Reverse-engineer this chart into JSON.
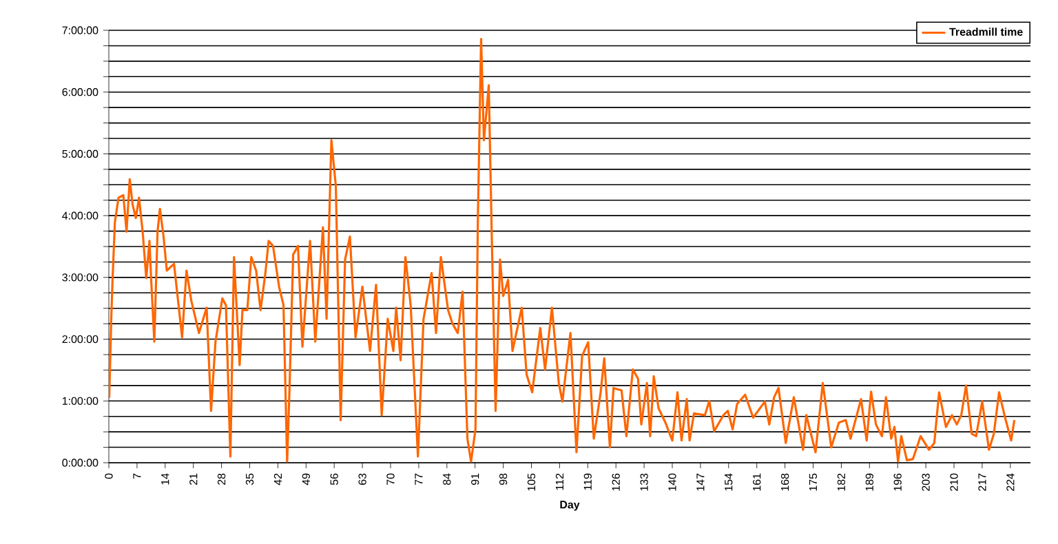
{
  "chart_data": {
    "type": "line",
    "xlabel": "Day",
    "legend": "top right",
    "grid": "y",
    "marker": "none",
    "line_style": "solid",
    "xlim": [
      0,
      229
    ],
    "xticks": [
      0,
      7,
      14,
      21,
      28,
      35,
      42,
      49,
      56,
      63,
      70,
      77,
      84,
      91,
      98,
      105,
      112,
      119,
      126,
      133,
      140,
      147,
      154,
      161,
      168,
      175,
      182,
      189,
      196,
      203,
      210,
      217,
      224
    ],
    "ylim": [
      0,
      7
    ],
    "yticks": [
      {
        "value": 0,
        "label": "0:00:00"
      },
      {
        "value": 0.25,
        "label": null
      },
      {
        "value": 0.5,
        "label": null
      },
      {
        "value": 0.75,
        "label": null
      },
      {
        "value": 1,
        "label": "1:00:00"
      },
      {
        "value": 1.25,
        "label": null
      },
      {
        "value": 1.5,
        "label": null
      },
      {
        "value": 1.75,
        "label": null
      },
      {
        "value": 2,
        "label": "2:00:00"
      },
      {
        "value": 2.25,
        "label": null
      },
      {
        "value": 2.5,
        "label": null
      },
      {
        "value": 2.75,
        "label": null
      },
      {
        "value": 3,
        "label": "3:00:00"
      },
      {
        "value": 3.25,
        "label": null
      },
      {
        "value": 3.5,
        "label": null
      },
      {
        "value": 3.75,
        "label": null
      },
      {
        "value": 4,
        "label": "4:00:00"
      },
      {
        "value": 4.25,
        "label": null
      },
      {
        "value": 4.5,
        "label": null
      },
      {
        "value": 4.75,
        "label": null
      },
      {
        "value": 5,
        "label": "5:00:00"
      },
      {
        "value": 5.25,
        "label": null
      },
      {
        "value": 5.5,
        "label": null
      },
      {
        "value": 5.75,
        "label": null
      },
      {
        "value": 6,
        "label": "6:00:00"
      },
      {
        "value": 6.25,
        "label": null
      },
      {
        "value": 6.5,
        "label": null
      },
      {
        "value": 6.75,
        "label": null
      },
      {
        "value": 7,
        "label": "7:00:00"
      }
    ],
    "series": [
      {
        "name": "Treadmill time",
        "color": "#ff6600",
        "x": [
          0.1,
          0.6,
          0.9,
          1.5,
          2.4,
          3.6,
          4.4,
          5.2,
          5.9,
          6.7,
          7.5,
          8.4,
          9.3,
          10.1,
          10.5,
          11.3,
          12.1,
          12.7,
          13.6,
          14.4,
          16.2,
          18.2,
          19.3,
          20.5,
          22.4,
          24.3,
          25.4,
          26.5,
          28.2,
          29.1,
          30.2,
          31.1,
          32.5,
          33.2,
          34.4,
          35.4,
          36.6,
          37.7,
          38.9,
          39.7,
          40.8,
          42.3,
          43.4,
          44.3,
          44.9,
          45.8,
          47.0,
          48.1,
          50.0,
          51.3,
          53.2,
          54.1,
          55.3,
          56.4,
          57.6,
          58.7,
          59.9,
          61.3,
          63.0,
          64.9,
          66.4,
          67.8,
          69.3,
          70.7,
          71.4,
          72.5,
          73.7,
          75.0,
          76.8,
          78.2,
          80.2,
          81.3,
          82.5,
          84.3,
          85.4,
          86.7,
          87.9,
          89.1,
          90.0,
          91.1,
          91.7,
          92.5,
          93.2,
          94.4,
          95.2,
          96.1,
          97.2,
          98.0,
          99.2,
          100.3,
          102.6,
          103.8,
          105.2,
          107.2,
          108.4,
          110.1,
          111.8,
          112.7,
          114.7,
          116.2,
          117.6,
          119.1,
          120.5,
          122.2,
          123.1,
          124.5,
          125.4,
          127.4,
          128.6,
          130.2,
          131.5,
          132.3,
          133.7,
          134.5,
          135.4,
          136.6,
          138.3,
          140.0,
          141.3,
          142.3,
          143.6,
          144.3,
          145.4,
          148.1,
          149.2,
          150.4,
          152.7,
          153.8,
          155.0,
          156.1,
          158.1,
          160.1,
          163.0,
          164.1,
          165.3,
          166.4,
          168.2,
          170.2,
          172.5,
          173.3,
          175.6,
          177.4,
          179.5,
          181.4,
          183.1,
          184.3,
          186.9,
          188.3,
          189.4,
          190.6,
          192.1,
          193.1,
          194.4,
          195.2,
          196.1,
          196.9,
          198.3,
          199.8,
          201.7,
          203.8,
          205.1,
          206.3,
          208.0,
          209.5,
          210.7,
          211.8,
          213.0,
          214.4,
          215.5,
          217.0,
          218.7,
          219.9,
          221.2,
          222.7,
          224.2,
          225.0
        ],
        "values": [
          1.05,
          2.33,
          2.92,
          3.89,
          4.29,
          4.33,
          3.74,
          4.59,
          4.18,
          3.96,
          4.29,
          3.74,
          2.99,
          3.59,
          2.99,
          1.96,
          3.74,
          4.11,
          3.66,
          3.11,
          3.22,
          2.03,
          3.11,
          2.62,
          2.1,
          2.51,
          0.84,
          1.96,
          2.66,
          2.55,
          0.1,
          3.33,
          1.58,
          2.47,
          2.47,
          3.33,
          3.11,
          2.47,
          3.07,
          3.59,
          3.51,
          2.85,
          2.55,
          0.02,
          1.21,
          3.37,
          3.51,
          1.88,
          3.59,
          1.96,
          3.81,
          2.33,
          5.22,
          4.48,
          0.69,
          3.29,
          3.66,
          2.03,
          2.85,
          1.81,
          2.88,
          0.77,
          2.33,
          1.81,
          2.51,
          1.66,
          3.33,
          2.55,
          0.1,
          2.33,
          3.07,
          2.1,
          3.33,
          2.47,
          2.25,
          2.1,
          2.77,
          0.39,
          0.02,
          0.54,
          3.96,
          6.86,
          5.22,
          6.11,
          3.51,
          0.84,
          3.29,
          2.7,
          2.96,
          1.81,
          2.51,
          1.43,
          1.14,
          2.18,
          1.51,
          2.51,
          1.29,
          0.99,
          2.1,
          0.17,
          1.73,
          1.95,
          0.39,
          1.14,
          1.69,
          0.25,
          1.21,
          1.17,
          0.43,
          1.51,
          1.36,
          0.62,
          1.29,
          0.43,
          1.4,
          0.88,
          0.65,
          0.36,
          1.14,
          0.36,
          1.03,
          0.36,
          0.8,
          0.77,
          1.0,
          0.51,
          0.77,
          0.84,
          0.54,
          0.95,
          1.1,
          0.73,
          0.99,
          0.62,
          1.06,
          1.21,
          0.32,
          1.06,
          0.21,
          0.77,
          0.17,
          1.29,
          0.25,
          0.65,
          0.69,
          0.39,
          1.03,
          0.36,
          1.15,
          0.62,
          0.43,
          1.06,
          0.39,
          0.58,
          0.02,
          0.43,
          0.04,
          0.06,
          0.43,
          0.21,
          0.32,
          1.14,
          0.58,
          0.77,
          0.62,
          0.77,
          1.25,
          0.47,
          0.43,
          0.99,
          0.21,
          0.47,
          1.14,
          0.73,
          0.36,
          0.69
        ]
      }
    ]
  }
}
